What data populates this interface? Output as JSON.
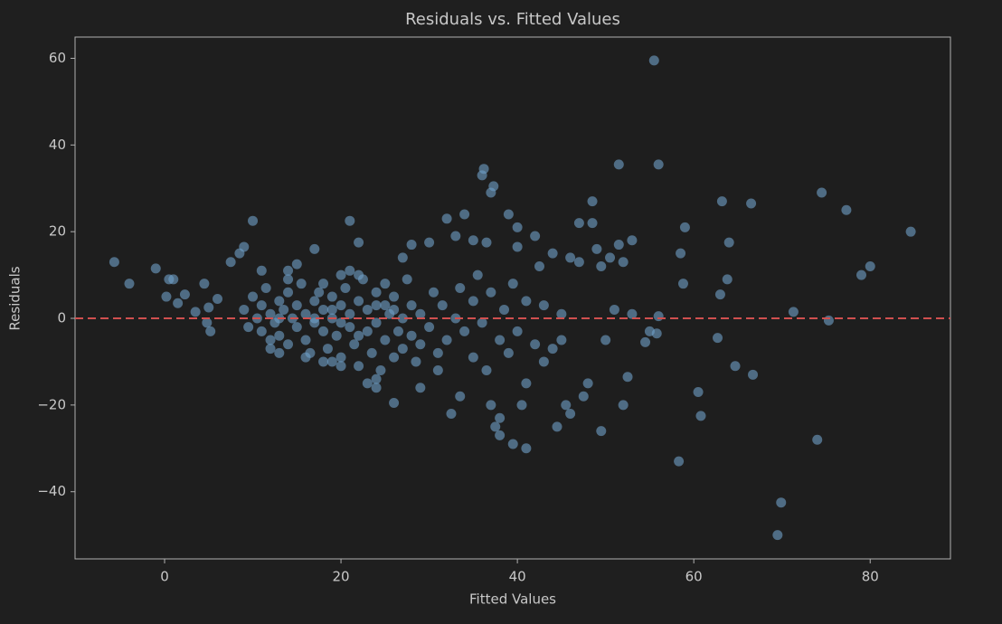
{
  "chart_data": {
    "type": "scatter",
    "title": "Residuals vs. Fitted Values",
    "xlabel": "Fitted Values",
    "ylabel": "Residuals",
    "xlim": [
      -10.15,
      89.1
    ],
    "ylim": [
      -55.5,
      64.9
    ],
    "xticks": [
      0,
      20,
      40,
      60,
      80
    ],
    "yticks": [
      {
        "value": -40,
        "label": "−40"
      },
      {
        "value": -20,
        "label": "−20"
      },
      0,
      20,
      40,
      60
    ],
    "hline": {
      "value": 0,
      "color": "#d0504f"
    },
    "color": "#6fa0c8",
    "x": [
      -5.7,
      -4,
      -1,
      0.5,
      1,
      0.2,
      1.5,
      2.3,
      3.5,
      4.5,
      4.8,
      5.2,
      5,
      6,
      7.5,
      8.5,
      9,
      10,
      11,
      12,
      13,
      14,
      15,
      17,
      18,
      20,
      21,
      22,
      23,
      24,
      25,
      26,
      27,
      28,
      29,
      30,
      31,
      32,
      32.5,
      33,
      33.5,
      34,
      35,
      35.5,
      36,
      36.2,
      36.5,
      37,
      37.3,
      37,
      37.5,
      38,
      38,
      39,
      39.5,
      40,
      40,
      40.5,
      41,
      41,
      42,
      42.5,
      43,
      44,
      44.5,
      45,
      45.5,
      46,
      46,
      47,
      47,
      47.5,
      48,
      48.5,
      48.5,
      49,
      49.5,
      49.5,
      50,
      50.5,
      51,
      51.5,
      51.5,
      52,
      52,
      52.5,
      53,
      53,
      54.5,
      55,
      55.5,
      55.8,
      56,
      56,
      58.3,
      58.5,
      58.8,
      59,
      60.5,
      60.8,
      62.7,
      63,
      63.2,
      64,
      63.8,
      64.7,
      66.5,
      66.7,
      69.5,
      69.9,
      71.3,
      74,
      74.5,
      75.3,
      77.3,
      79,
      80,
      84.6,
      9,
      9.5,
      10,
      10.5,
      11,
      11,
      11.5,
      12,
      12.5,
      13,
      13,
      13.5,
      14,
      14,
      14.5,
      15,
      15,
      15.5,
      16,
      16,
      16.5,
      17,
      17,
      17.5,
      18,
      18,
      18.5,
      19,
      19,
      19.5,
      20,
      20,
      20.5,
      21,
      21,
      21.5,
      22,
      22,
      22.5,
      23,
      23,
      23.5,
      24,
      24,
      24.5,
      25,
      25,
      25.5,
      26,
      26,
      26.5,
      27,
      27,
      27.5,
      28,
      28,
      28.5,
      29,
      29,
      30,
      30.5,
      31,
      31.5,
      32,
      33,
      33.5,
      34,
      35,
      35,
      36,
      36.5,
      37,
      38,
      38.5,
      39,
      39.5,
      40,
      41,
      42,
      43,
      44,
      45,
      16,
      18,
      20,
      22,
      24,
      12,
      14,
      19,
      21,
      13,
      17,
      19,
      20,
      22,
      24,
      26
    ],
    "y": [
      13,
      8,
      11.5,
      9,
      9,
      5,
      3.5,
      5.5,
      1.5,
      8,
      -1,
      -3,
      2.5,
      4.5,
      13,
      15,
      16.5,
      22.5,
      11,
      -5,
      -8,
      11,
      12.5,
      16,
      -10,
      10,
      22.5,
      17.5,
      -15,
      -16,
      8,
      -19.5,
      14,
      17,
      -16,
      17.5,
      -12,
      23,
      -22,
      19,
      -18,
      24,
      18,
      10,
      33,
      34.5,
      17.5,
      29,
      30.5,
      -20,
      -25,
      -27,
      -23,
      24,
      -29,
      21,
      16.5,
      -20,
      -30,
      -15,
      19,
      12,
      -10,
      15,
      -25,
      -5,
      -20,
      -22,
      14,
      22,
      13,
      -18,
      -15,
      27,
      22,
      16,
      12,
      -26,
      -5,
      14,
      2,
      35.5,
      17,
      13,
      -20,
      -13.5,
      18,
      1,
      -5.5,
      -3,
      59.5,
      -3.5,
      35.5,
      0.5,
      -33,
      15,
      8,
      21,
      -17,
      -22.5,
      -4.5,
      5.5,
      27,
      17.5,
      9,
      -11,
      26.5,
      -13,
      -50,
      -42.5,
      1.5,
      -28,
      29,
      -0.5,
      25,
      10,
      12,
      20,
      2,
      -2,
      5,
      0,
      -3,
      3,
      7,
      1,
      -1,
      4,
      -4,
      2,
      -6,
      6,
      0,
      -2,
      3,
      8,
      -5,
      1,
      -8,
      4,
      -1,
      6,
      -3,
      2,
      -7,
      5,
      0,
      -4,
      3,
      -9,
      7,
      -2,
      1,
      -6,
      4,
      -11,
      9,
      -3,
      2,
      -8,
      6,
      -1,
      -12,
      3,
      -5,
      1,
      -9,
      5,
      -3,
      0,
      -7,
      9,
      -4,
      3,
      -10,
      1,
      -6,
      -2,
      6,
      -8,
      3,
      -5,
      0,
      7,
      -3,
      -9,
      4,
      -1,
      -12,
      6,
      -5,
      2,
      -8,
      8,
      -3,
      4,
      -6,
      3,
      -7,
      1,
      -9,
      8,
      -11,
      10,
      -14,
      -7,
      9,
      -10,
      11,
      0,
      0,
      2,
      -1,
      -4,
      3,
      2
    ]
  }
}
